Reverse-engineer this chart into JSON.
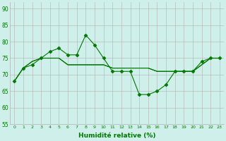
{
  "line1": [
    68,
    72,
    73,
    75,
    77,
    78,
    76,
    76,
    82,
    79,
    75,
    71,
    71,
    71,
    64,
    64,
    65,
    67,
    71,
    71,
    71,
    74,
    75,
    75
  ],
  "line2": [
    68,
    72,
    74,
    75,
    75,
    75,
    73,
    73,
    73,
    73,
    73,
    72,
    72,
    72,
    72,
    72,
    71,
    71,
    71,
    71,
    71,
    73,
    75,
    75
  ],
  "line3": [
    68,
    72,
    74,
    75,
    75,
    75,
    73,
    73,
    73,
    73,
    73,
    72,
    72,
    72,
    72,
    72,
    71,
    71,
    71,
    71,
    71,
    73,
    75,
    75
  ],
  "x": [
    0,
    1,
    2,
    3,
    4,
    5,
    6,
    7,
    8,
    9,
    10,
    11,
    12,
    13,
    14,
    15,
    16,
    17,
    18,
    19,
    20,
    21,
    22,
    23
  ],
  "xlabel": "Humidité relative (%)",
  "ylim": [
    55,
    92
  ],
  "yticks": [
    55,
    60,
    65,
    70,
    75,
    80,
    85,
    90
  ],
  "line_color": "#007700",
  "bg_color": "#cff0ea",
  "grid_color": "#b0b0b0",
  "markersize": 2.5,
  "linewidth": 0.8
}
